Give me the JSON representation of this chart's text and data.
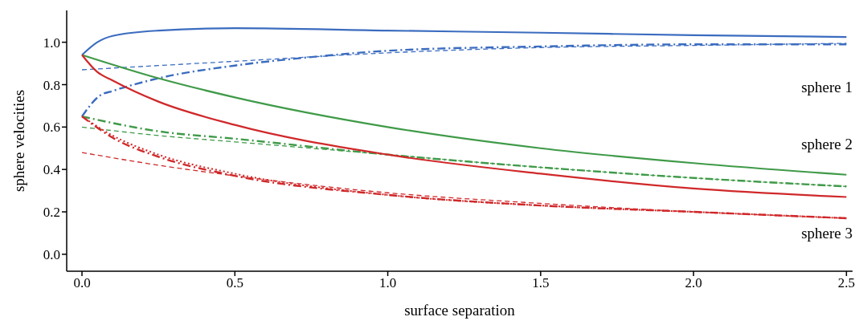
{
  "chart_data": {
    "type": "line",
    "xlabel": "surface separation",
    "ylabel": "sphere velocities",
    "xlim": [
      -0.05,
      2.52
    ],
    "ylim": [
      -0.08,
      1.15
    ],
    "xticks": [
      {
        "value": 0,
        "label": "0.0"
      },
      {
        "value": 0.5,
        "label": "0.5"
      },
      {
        "value": 1,
        "label": "1.0"
      },
      {
        "value": 1.5,
        "label": "1.5"
      },
      {
        "value": 2,
        "label": "2.0"
      },
      {
        "value": 2.5,
        "label": "2.5"
      }
    ],
    "yticks": [
      {
        "value": 0,
        "label": "0.0"
      },
      {
        "value": 0.2,
        "label": "0.2"
      },
      {
        "value": 0.4,
        "label": "0.4"
      },
      {
        "value": 0.6,
        "label": "0.6"
      },
      {
        "value": 0.8,
        "label": "0.8"
      },
      {
        "value": 1,
        "label": "1.0"
      }
    ],
    "grid": false,
    "marker": "none",
    "series": [
      {
        "color": "#3b6cbf",
        "line_style": "solid",
        "x": [
          0,
          0.05,
          0.1,
          0.25,
          0.5,
          1,
          1.5,
          2,
          2.5
        ],
        "values": [
          0.94,
          1.0,
          1.03,
          1.055,
          1.066,
          1.055,
          1.045,
          1.033,
          1.025
        ]
      },
      {
        "color": "#3b6cbf",
        "line_style": "dashed",
        "x": [
          0,
          0.5,
          1,
          1.5,
          2,
          2.5
        ],
        "values": [
          0.87,
          0.91,
          0.95,
          0.975,
          0.985,
          0.995
        ]
      },
      {
        "color": "#3b6cbf",
        "line_style": "dashdot",
        "x": [
          0,
          0.06,
          0.1,
          0.25,
          0.5,
          0.75,
          1,
          1.5,
          2,
          2.5
        ],
        "values": [
          0.65,
          0.75,
          0.77,
          0.83,
          0.89,
          0.93,
          0.96,
          0.98,
          0.99,
          0.99
        ]
      },
      {
        "color": "#3f9a48",
        "line_style": "solid",
        "x": [
          0,
          0.25,
          0.5,
          1,
          1.5,
          2,
          2.5
        ],
        "values": [
          0.94,
          0.83,
          0.74,
          0.6,
          0.5,
          0.43,
          0.375
        ]
      },
      {
        "color": "#3f9a48",
        "line_style": "dashed",
        "x": [
          0,
          0.25,
          0.5,
          1,
          1.5,
          2,
          2.5
        ],
        "values": [
          0.6,
          0.56,
          0.53,
          0.47,
          0.41,
          0.36,
          0.32
        ]
      },
      {
        "color": "#3f9a48",
        "line_style": "dashdot",
        "x": [
          0,
          0.25,
          0.5,
          1,
          1.5,
          2,
          2.5
        ],
        "values": [
          0.65,
          0.58,
          0.545,
          0.47,
          0.41,
          0.36,
          0.32
        ]
      },
      {
        "color": "#d0282a",
        "line_style": "solid",
        "x": [
          0,
          0.05,
          0.1,
          0.25,
          0.5,
          1,
          1.5,
          2,
          2.5
        ],
        "values": [
          0.94,
          0.86,
          0.82,
          0.72,
          0.61,
          0.47,
          0.38,
          0.31,
          0.27
        ]
      },
      {
        "color": "#d0282a",
        "line_style": "dashed",
        "x": [
          0,
          0.25,
          0.5,
          1,
          1.5,
          2,
          2.5
        ],
        "values": [
          0.48,
          0.42,
          0.37,
          0.29,
          0.24,
          0.2,
          0.17
        ]
      },
      {
        "color": "#d0282a",
        "line_style": "dashdot",
        "x": [
          0,
          0.1,
          0.25,
          0.5,
          1,
          1.5,
          2,
          2.5
        ],
        "values": [
          0.65,
          0.55,
          0.46,
          0.37,
          0.28,
          0.23,
          0.2,
          0.17
        ]
      },
      {
        "color": "#d0282a",
        "line_style": "dotted",
        "x": [
          0,
          0.1,
          0.25,
          0.5,
          1,
          1.5,
          2,
          2.5
        ],
        "values": [
          0.65,
          0.56,
          0.47,
          0.38,
          0.28,
          0.23,
          0.2,
          0.17
        ]
      }
    ],
    "annotations": [
      "sphere 1",
      "sphere 2",
      "sphere 3"
    ]
  }
}
